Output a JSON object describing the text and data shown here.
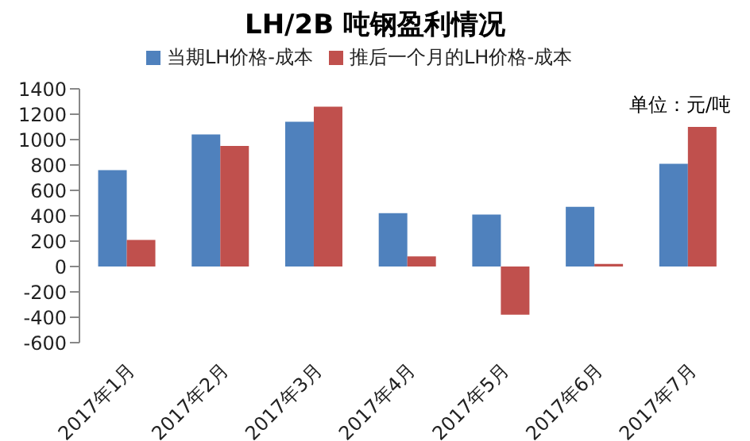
{
  "chart_data": {
    "type": "bar",
    "title": "LH/2B 吨钢盈利情况",
    "categories": [
      "2017年1月",
      "2017年2月",
      "2017年3月",
      "2017年4月",
      "2017年5月",
      "2017年6月",
      "2017年7月"
    ],
    "series": [
      {
        "name": "当期LH价格-成本",
        "color": "#4f81bd",
        "values": [
          760,
          1040,
          1140,
          420,
          410,
          470,
          810
        ]
      },
      {
        "name": "推后一个月的LH价格-成本",
        "color": "#c0504d",
        "values": [
          210,
          950,
          1260,
          80,
          -380,
          20,
          1100
        ]
      }
    ],
    "ylim": [
      -600,
      1400
    ],
    "yticks": [
      -600,
      -400,
      -200,
      0,
      200,
      400,
      600,
      800,
      1000,
      1200,
      1400
    ],
    "legend": "top",
    "annotations": [
      "单位：元/吨"
    ]
  }
}
